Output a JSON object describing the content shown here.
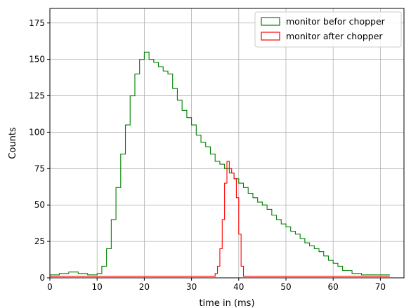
{
  "chart_data": {
    "type": "histogram",
    "xlabel": "time in (ms)",
    "ylabel": "Counts",
    "xlim": [
      0,
      75
    ],
    "ylim": [
      0,
      185
    ],
    "x_ticks": [
      0,
      10,
      20,
      30,
      40,
      50,
      60,
      70
    ],
    "y_ticks": [
      0,
      25,
      50,
      75,
      100,
      125,
      150,
      175
    ],
    "grid": true,
    "legend_position": "top-right",
    "series": [
      {
        "name": "monitor befor chopper",
        "color": "#008000",
        "style": "step",
        "x": [
          0,
          2,
          4,
          6,
          8,
          10,
          11,
          12,
          13,
          14,
          15,
          16,
          17,
          18,
          19,
          20,
          21,
          22,
          23,
          24,
          25,
          26,
          27,
          28,
          29,
          30,
          31,
          32,
          33,
          34,
          35,
          36,
          37,
          38,
          39,
          40,
          41,
          42,
          43,
          44,
          45,
          46,
          47,
          48,
          49,
          50,
          51,
          52,
          53,
          54,
          55,
          56,
          57,
          58,
          59,
          60,
          61,
          62,
          64,
          66,
          68,
          70,
          72
        ],
        "y": [
          2,
          3,
          4,
          3,
          2,
          3,
          8,
          20,
          40,
          62,
          85,
          105,
          125,
          140,
          150,
          155,
          150,
          148,
          145,
          142,
          140,
          130,
          122,
          115,
          110,
          105,
          98,
          93,
          90,
          85,
          80,
          78,
          75,
          72,
          68,
          65,
          62,
          58,
          55,
          52,
          50,
          47,
          43,
          40,
          37,
          35,
          32,
          30,
          27,
          24,
          22,
          20,
          18,
          15,
          12,
          10,
          8,
          5,
          3,
          2,
          2,
          2,
          2
        ]
      },
      {
        "name": "monitor after chopper",
        "color": "#ff0000",
        "style": "step",
        "x": [
          0,
          34,
          35,
          35.5,
          36,
          36.5,
          37,
          37.5,
          38,
          38.5,
          39,
          39.5,
          40,
          40.5,
          41,
          72
        ],
        "y": [
          1,
          1,
          3,
          8,
          20,
          40,
          65,
          80,
          75,
          72,
          68,
          55,
          30,
          8,
          1,
          1
        ]
      }
    ]
  }
}
